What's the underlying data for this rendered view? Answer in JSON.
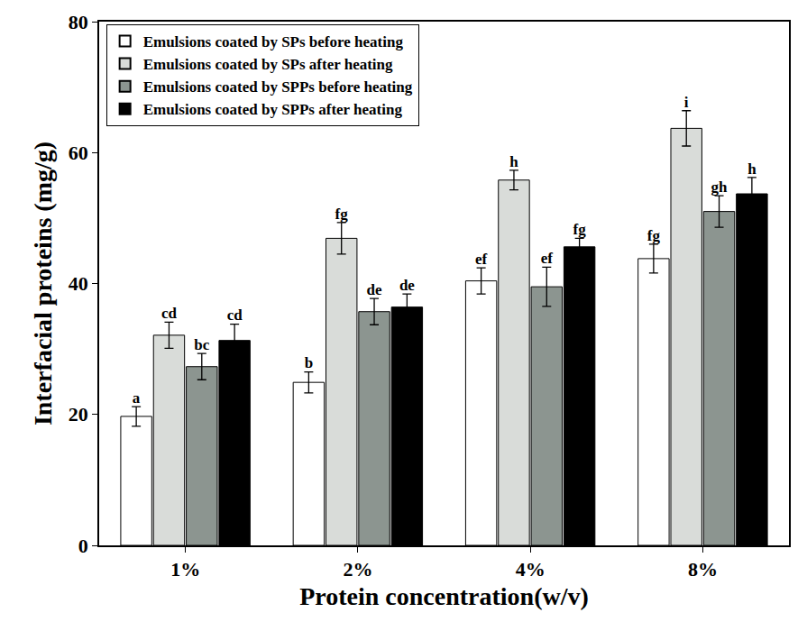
{
  "chart_data": {
    "type": "bar",
    "x_label": "Protein concentration(w/v)",
    "y_label": "Interfacial proteins (mg/g)",
    "categories": [
      "1%",
      "2%",
      "4%",
      "8%"
    ],
    "ylim": [
      0,
      80
    ],
    "yticks": [
      0,
      20,
      40,
      60,
      80
    ],
    "legend": "upper left",
    "grid": false,
    "series": [
      {
        "name": "Emulsions coated by SPs before heating",
        "color": "#ffffff",
        "values": [
          19.7,
          24.9,
          40.4,
          43.8
        ],
        "errors": [
          1.5,
          1.6,
          2.0,
          2.2
        ],
        "letters": [
          "a",
          "b",
          "ef",
          "fg"
        ]
      },
      {
        "name": "Emulsions coated by SPs after heating",
        "color": "#d9dcd9",
        "values": [
          32.1,
          46.9,
          55.8,
          63.7
        ],
        "errors": [
          2.0,
          2.4,
          1.5,
          2.7
        ],
        "letters": [
          "cd",
          "fg",
          "h",
          "i"
        ]
      },
      {
        "name": "Emulsions coated by SPPs before heating",
        "color": "#8c9590",
        "values": [
          27.3,
          35.7,
          39.5,
          51.0
        ],
        "errors": [
          2.0,
          2.0,
          3.0,
          2.4
        ],
        "letters": [
          "bc",
          "de",
          "ef",
          "gh"
        ]
      },
      {
        "name": "Emulsions coated by SPPs after heating",
        "color": "#000000",
        "values": [
          31.3,
          36.4,
          45.6,
          53.7
        ],
        "errors": [
          2.5,
          2.0,
          1.3,
          2.5
        ],
        "letters": [
          "cd",
          "de",
          "fg",
          "h"
        ]
      }
    ]
  }
}
